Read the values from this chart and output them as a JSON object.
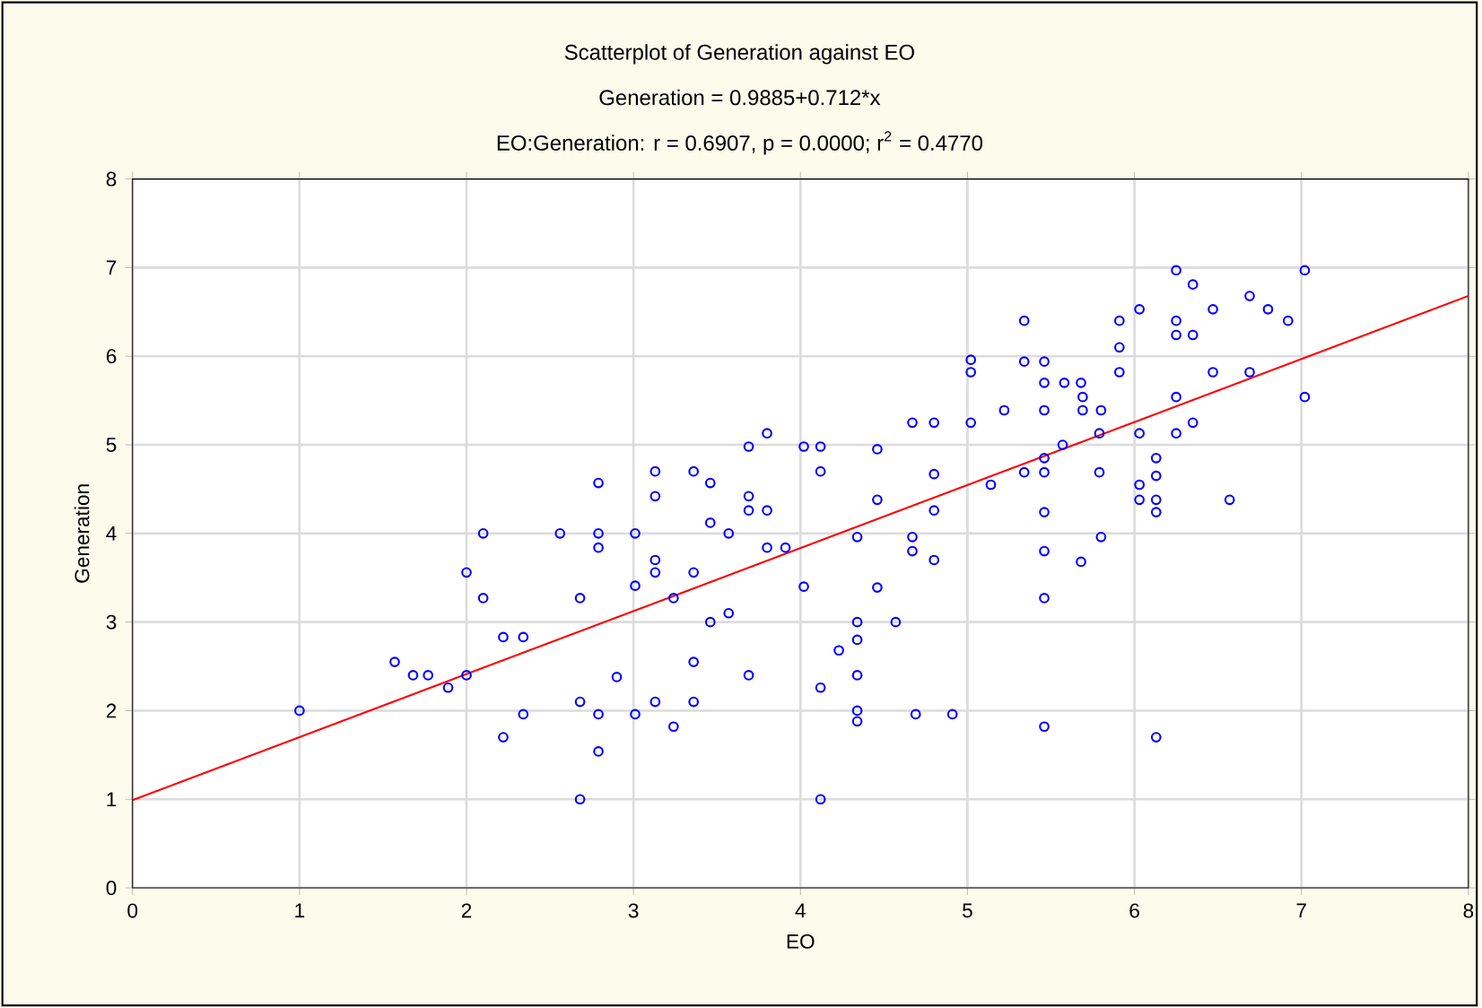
{
  "chart_data": {
    "type": "scatter",
    "title": "Scatterplot of Generation against EO",
    "subtitle": "Generation = 0.9885+0.712*x",
    "annotations": [
      "EO:Generation:   r = 0.6907, p = 0.0000; r$^{2}$ = 0.4770"
    ],
    "xlabel": "EO",
    "ylabel": "Generation",
    "xlim": [
      0,
      8
    ],
    "ylim": [
      0,
      8
    ],
    "xticks": [
      0,
      1,
      2,
      3,
      4,
      5,
      6,
      7,
      8
    ],
    "yticks": [
      0,
      1,
      2,
      3,
      4,
      5,
      6,
      7,
      8
    ],
    "grid": true,
    "marker": "circle",
    "series": [
      {
        "color": "#0000ff",
        "x": [
          1.0,
          1.57,
          1.68,
          1.77,
          1.89,
          2.0,
          2.0,
          2.1,
          2.1,
          2.22,
          2.34,
          2.22,
          2.34,
          2.56,
          2.68,
          2.68,
          2.68,
          2.79,
          2.79,
          2.79,
          2.79,
          2.79,
          2.9,
          3.01,
          3.01,
          3.01,
          3.13,
          3.13,
          3.13,
          3.13,
          3.13,
          3.24,
          3.24,
          3.36,
          3.36,
          3.36,
          3.36,
          3.46,
          3.46,
          3.46,
          3.57,
          3.57,
          3.69,
          3.69,
          3.69,
          3.69,
          3.8,
          3.8,
          3.8,
          3.91,
          4.02,
          4.02,
          4.12,
          4.12,
          4.12,
          4.12,
          4.34,
          4.34,
          4.23,
          4.57,
          4.34,
          4.34,
          4.34,
          4.69,
          4.91,
          4.46,
          4.46,
          4.46,
          4.34,
          4.67,
          4.67,
          4.8,
          4.8,
          4.8,
          4.67,
          4.8,
          5.02,
          6.25,
          6.35,
          7.02,
          6.69,
          6.8,
          6.92,
          6.47,
          6.03,
          5.91,
          5.34,
          6.25,
          6.25,
          6.35,
          5.91,
          5.02,
          5.02,
          5.34,
          5.46,
          5.91,
          6.47,
          6.69,
          5.46,
          5.58,
          5.68,
          5.69,
          5.69,
          5.22,
          5.46,
          5.8,
          6.25,
          7.02,
          6.35,
          5.79,
          6.03,
          6.25,
          5.57,
          5.46,
          5.46,
          5.34,
          5.79,
          6.13,
          6.13,
          6.03,
          6.03,
          6.13,
          6.13,
          6.57,
          5.46,
          5.8,
          5.46,
          5.68,
          5.46,
          5.46,
          6.13,
          5.14
        ],
        "values": [
          2.0,
          2.55,
          2.4,
          2.4,
          2.26,
          2.4,
          3.56,
          4.0,
          3.27,
          2.83,
          2.83,
          1.7,
          1.96,
          4.0,
          3.27,
          2.1,
          1.0,
          4.57,
          4.0,
          3.84,
          1.96,
          1.54,
          2.38,
          4.0,
          3.41,
          1.96,
          4.7,
          4.42,
          3.7,
          3.56,
          2.1,
          3.27,
          1.82,
          4.7,
          3.56,
          2.55,
          2.1,
          4.57,
          4.12,
          3.0,
          4.0,
          3.1,
          4.98,
          4.42,
          4.26,
          2.4,
          5.13,
          4.26,
          3.84,
          3.84,
          3.4,
          4.98,
          4.98,
          4.7,
          2.26,
          1.0,
          3.0,
          2.8,
          2.68,
          3.0,
          2.4,
          2.0,
          1.88,
          1.96,
          1.96,
          3.39,
          4.38,
          4.95,
          3.96,
          3.96,
          3.8,
          3.7,
          4.26,
          4.67,
          5.25,
          5.25,
          5.25,
          6.97,
          6.81,
          6.97,
          6.68,
          6.53,
          6.4,
          6.53,
          6.53,
          6.4,
          6.4,
          6.4,
          6.24,
          6.24,
          6.1,
          5.96,
          5.82,
          5.94,
          5.94,
          5.82,
          5.82,
          5.82,
          5.7,
          5.7,
          5.7,
          5.54,
          5.39,
          5.39,
          5.39,
          5.39,
          5.54,
          5.54,
          5.25,
          5.13,
          5.13,
          5.13,
          5.0,
          4.85,
          4.69,
          4.69,
          4.69,
          4.85,
          4.65,
          4.55,
          4.38,
          4.38,
          4.24,
          4.38,
          4.24,
          3.96,
          3.8,
          3.68,
          3.27,
          1.82,
          1.7,
          4.55
        ]
      },
      {
        "type": "line",
        "color": "#ff0000",
        "marker": "none",
        "x": [
          0,
          8
        ],
        "values": [
          0.99,
          6.68
        ]
      }
    ]
  }
}
